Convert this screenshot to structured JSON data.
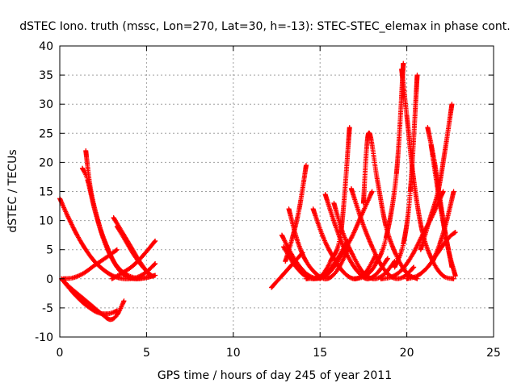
{
  "chart_data": {
    "type": "scatter",
    "title": "dSTEC Iono. truth (mssc, Lon=270, Lat=30, h=-13): STEC-STEC_elemax in phase cont.",
    "xlabel": "GPS time / hours of day 245 of year 2011",
    "ylabel": "dSTEC  / TECUs",
    "xlim": [
      0,
      25
    ],
    "ylim": [
      -10,
      40
    ],
    "xticks": [
      0,
      5,
      10,
      15,
      20,
      25
    ],
    "yticks": [
      -10,
      -5,
      0,
      5,
      10,
      15,
      20,
      25,
      30,
      35,
      40
    ],
    "grid": true,
    "marker": "+",
    "marker_color": "#ff0000",
    "series": [
      {
        "x": [
          0.0,
          0.5,
          1.0,
          1.5,
          2.0,
          2.5,
          3.0,
          3.5,
          4.0,
          4.5,
          5.0,
          5.5
        ],
        "y": [
          13.8,
          10.5,
          7.5,
          5.0,
          3.0,
          1.6,
          0.6,
          0.1,
          0.0,
          0.3,
          1.2,
          2.6
        ]
      },
      {
        "x": [
          0.1,
          0.6,
          1.2,
          1.8,
          2.4,
          2.9,
          3.3,
          3.7
        ],
        "y": [
          0.0,
          -1.5,
          -3.0,
          -4.5,
          -6.0,
          -7.0,
          -6.2,
          -3.8
        ]
      },
      {
        "x": [
          0.1,
          0.8,
          1.5,
          2.2,
          2.8,
          3.3
        ],
        "y": [
          0.0,
          -2.5,
          -4.5,
          -5.8,
          -6.0,
          -5.5
        ]
      },
      {
        "x": [
          0.2,
          0.8,
          1.4,
          2.0,
          2.6,
          3.3
        ],
        "y": [
          0.0,
          0.2,
          1.0,
          2.3,
          3.5,
          5.0
        ]
      },
      {
        "x": [
          1.3,
          1.6,
          2.0,
          2.5,
          3.0,
          3.5,
          4.0,
          4.5,
          5.0,
          5.5
        ],
        "y": [
          19.0,
          17.0,
          12.0,
          7.0,
          3.5,
          1.5,
          0.5,
          0.1,
          0.2,
          0.6
        ]
      },
      {
        "x": [
          1.5,
          1.8,
          2.3,
          2.8,
          3.3,
          3.8,
          4.3,
          4.8,
          5.4
        ],
        "y": [
          22.0,
          15.0,
          9.0,
          5.0,
          2.0,
          0.5,
          0.0,
          0.1,
          0.5
        ]
      },
      {
        "x": [
          3.1,
          3.6,
          4.1,
          4.6,
          5.2
        ],
        "y": [
          10.5,
          8.0,
          5.5,
          3.0,
          0.5
        ]
      },
      {
        "x": [
          3.3,
          3.8,
          4.3,
          4.8,
          5.3
        ],
        "y": [
          9.0,
          6.5,
          4.0,
          2.0,
          0.5
        ]
      },
      {
        "x": [
          3.0,
          3.6,
          4.2,
          4.8,
          5.5
        ],
        "y": [
          0.0,
          1.0,
          2.2,
          4.0,
          6.5
        ]
      },
      {
        "x": [
          12.2,
          12.8,
          13.4,
          14.0
        ],
        "y": [
          -1.5,
          0.5,
          2.5,
          4.5
        ]
      },
      {
        "x": [
          12.8,
          13.4,
          14.0,
          14.6,
          15.2,
          15.8,
          16.4
        ],
        "y": [
          7.5,
          4.0,
          1.5,
          0.2,
          0.3,
          2.0,
          5.0
        ]
      },
      {
        "x": [
          12.9,
          13.5,
          14.1,
          14.7,
          15.3,
          15.9,
          16.6
        ],
        "y": [
          5.5,
          2.5,
          0.6,
          0.0,
          0.8,
          3.0,
          6.5
        ]
      },
      {
        "x": [
          13.0,
          13.4,
          13.8,
          14.2
        ],
        "y": [
          3.0,
          7.0,
          12.0,
          19.5
        ]
      },
      {
        "x": [
          13.2,
          13.7,
          14.2,
          14.8,
          15.4,
          16.0,
          16.6
        ],
        "y": [
          12.0,
          6.5,
          3.0,
          0.8,
          0.0,
          1.5,
          5.0
        ]
      },
      {
        "x": [
          14.2,
          14.9,
          15.6,
          16.2,
          16.8,
          17.4,
          18.0
        ],
        "y": [
          0.0,
          0.3,
          1.5,
          4.0,
          7.0,
          11.0,
          15.0
        ]
      },
      {
        "x": [
          14.6,
          15.2,
          15.8,
          16.4,
          17.0,
          17.6,
          18.2
        ],
        "y": [
          12.0,
          7.0,
          3.5,
          1.0,
          0.0,
          1.0,
          4.0
        ]
      },
      {
        "x": [
          15.3,
          15.9,
          16.5,
          17.1,
          17.7,
          18.3,
          18.9
        ],
        "y": [
          14.5,
          9.0,
          4.5,
          1.5,
          0.0,
          1.0,
          3.5
        ]
      },
      {
        "x": [
          15.0,
          15.6,
          16.2,
          16.7
        ],
        "y": [
          0.0,
          3.0,
          8.0,
          26.0
        ]
      },
      {
        "x": [
          15.8,
          16.3,
          16.9,
          17.5,
          18.1,
          18.7,
          19.3
        ],
        "y": [
          13.0,
          8.0,
          4.0,
          1.0,
          0.0,
          0.8,
          3.0
        ]
      },
      {
        "x": [
          16.8,
          17.4,
          18.0,
          18.6,
          19.2,
          19.8,
          20.4
        ],
        "y": [
          15.5,
          10.0,
          5.5,
          2.0,
          0.2,
          0.3,
          2.0
        ]
      },
      {
        "x": [
          17.5,
          17.8,
          18.3,
          18.8,
          19.4,
          20.0,
          20.6
        ],
        "y": [
          13.0,
          25.0,
          17.0,
          9.0,
          4.0,
          1.0,
          0.0
        ]
      },
      {
        "x": [
          17.0,
          17.6,
          18.2,
          18.8,
          19.4,
          19.8
        ],
        "y": [
          0.0,
          0.5,
          2.5,
          7.0,
          18.0,
          37.0
        ]
      },
      {
        "x": [
          18.5,
          19.1,
          19.7,
          20.3,
          20.9,
          21.5,
          22.1
        ],
        "y": [
          0.0,
          0.3,
          1.5,
          4.0,
          7.5,
          11.0,
          15.0
        ]
      },
      {
        "x": [
          19.7,
          20.0,
          20.4,
          20.9,
          21.5,
          22.1,
          22.7
        ],
        "y": [
          36.0,
          28.0,
          17.0,
          8.0,
          3.0,
          0.5,
          0.0
        ]
      },
      {
        "x": [
          19.3,
          19.8,
          20.2,
          20.6
        ],
        "y": [
          2.0,
          6.0,
          15.0,
          35.0
        ]
      },
      {
        "x": [
          20.0,
          20.6,
          21.2,
          21.8,
          22.4,
          22.8
        ],
        "y": [
          0.0,
          0.5,
          2.0,
          4.5,
          7.0,
          8.0
        ]
      },
      {
        "x": [
          21.2,
          21.6,
          22.0,
          22.4,
          22.8
        ],
        "y": [
          26.0,
          20.0,
          12.0,
          5.0,
          0.5
        ]
      },
      {
        "x": [
          21.4,
          21.8,
          22.2,
          22.6
        ],
        "y": [
          23.0,
          15.0,
          8.0,
          2.0
        ]
      },
      {
        "x": [
          20.8,
          21.3,
          21.8,
          22.2,
          22.6
        ],
        "y": [
          5.0,
          10.0,
          15.0,
          22.0,
          30.0
        ]
      },
      {
        "x": [
          21.5,
          21.9,
          22.3,
          22.7
        ],
        "y": [
          3.0,
          6.0,
          10.0,
          15.0
        ]
      }
    ]
  }
}
